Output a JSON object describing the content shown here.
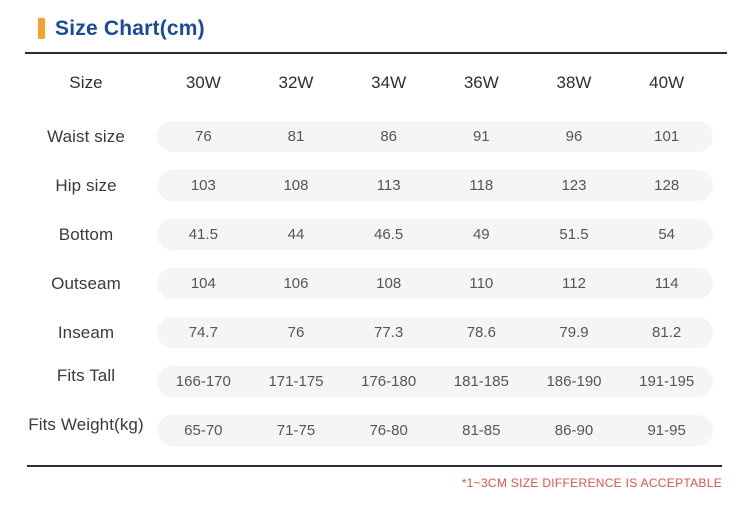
{
  "header": {
    "title": "Size Chart(cm)"
  },
  "table": {
    "size_label": "Size",
    "sizes": [
      "30W",
      "32W",
      "34W",
      "36W",
      "38W",
      "40W"
    ],
    "rows": [
      {
        "label": "Waist size",
        "values": [
          "76",
          "81",
          "86",
          "91",
          "96",
          "101"
        ]
      },
      {
        "label": "Hip size",
        "values": [
          "103",
          "108",
          "113",
          "118",
          "123",
          "128"
        ]
      },
      {
        "label": "Bottom",
        "values": [
          "41.5",
          "44",
          "46.5",
          "49",
          "51.5",
          "54"
        ]
      },
      {
        "label": "Outseam",
        "values": [
          "104",
          "106",
          "108",
          "110",
          "112",
          "114"
        ]
      },
      {
        "label": "Inseam",
        "values": [
          "74.7",
          "76",
          "77.3",
          "78.6",
          "79.9",
          "81.2"
        ]
      },
      {
        "label": "Fits Tall",
        "values": [
          "166-170",
          "171-175",
          "176-180",
          "181-185",
          "186-190",
          "191-195"
        ]
      },
      {
        "label": "Fits Weight(kg)",
        "values": [
          "65-70",
          "71-75",
          "76-80",
          "81-85",
          "86-90",
          "91-95"
        ]
      }
    ]
  },
  "footer": {
    "note": "*1~3CM SIZE DIFFERENCE IS ACCEPTABLE"
  },
  "colors": {
    "accent_bar": "#F6A12E",
    "title_text": "#1B4A9B",
    "divider": "#2E2E2E",
    "pill_background": "#F5F5F6",
    "value_text": "#55555A",
    "label_text": "#3A3A3A",
    "note_text": "#DF5348"
  }
}
